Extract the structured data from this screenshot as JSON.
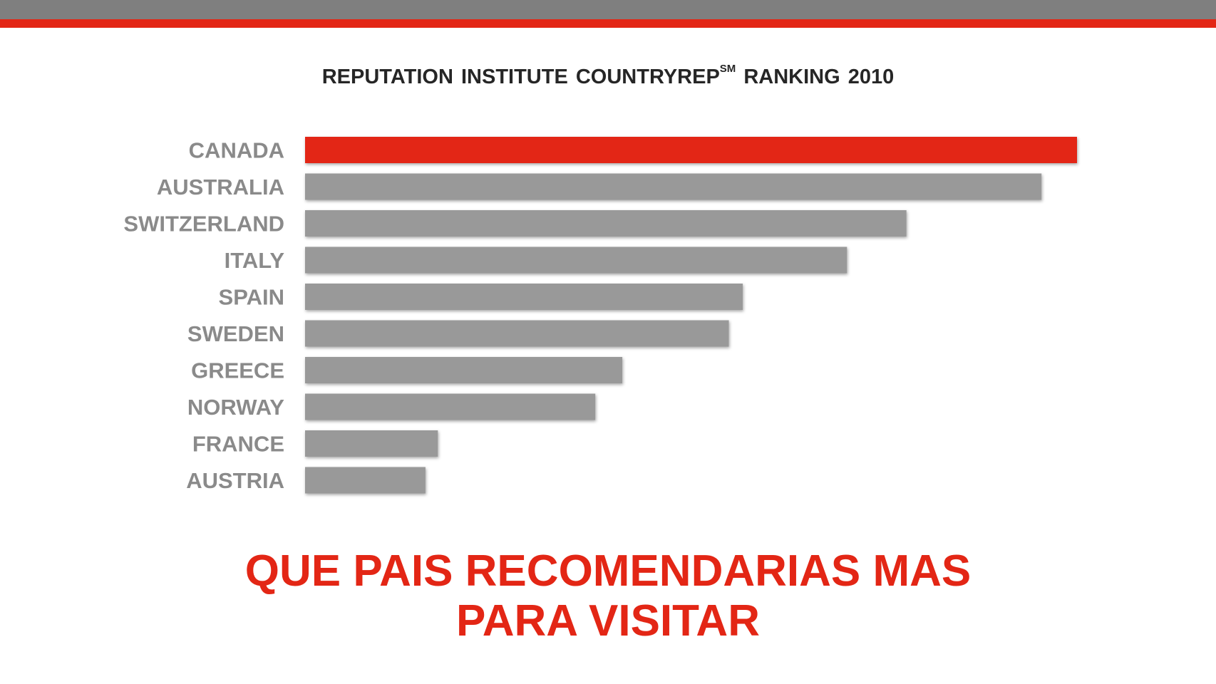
{
  "header": {
    "title_main": "REPUTATION INSTITUTE COUNTRYREP",
    "title_superscript": "SM",
    "title_tail": " RANKING 2010"
  },
  "colors": {
    "accent": "#e32615",
    "bar": "#999999",
    "label": "#8a8a8a",
    "top_band": "#7f7f7f"
  },
  "chart_data": {
    "type": "bar",
    "orientation": "horizontal",
    "title": "REPUTATION INSTITUTE COUNTRYREP SM RANKING 2010",
    "categories": [
      "CANADA",
      "AUSTRALIA",
      "SWITZERLAND",
      "ITALY",
      "SPAIN",
      "SWEDEN",
      "GREECE",
      "NORWAY",
      "FRANCE",
      "AUSTRIA"
    ],
    "values": [
      100,
      95.4,
      77.9,
      70.2,
      56.7,
      54.9,
      41.1,
      37.6,
      17.2,
      15.6
    ],
    "highlight_index": 0,
    "xlim": [
      0,
      100
    ],
    "grid": false,
    "legend": "none"
  },
  "headline": {
    "line1": "QUE PAIS RECOMENDARIAS MAS",
    "line2": "PARA VISITAR"
  }
}
